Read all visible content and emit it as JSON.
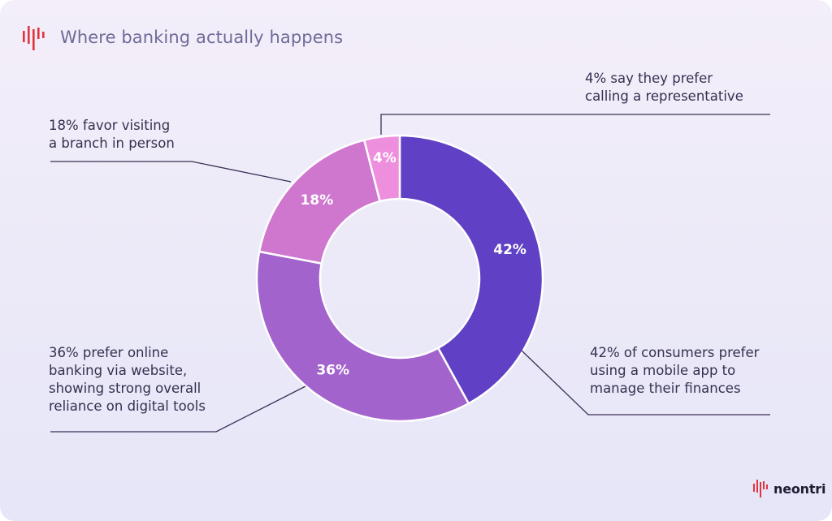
{
  "header": {
    "title": "Where banking actually happens"
  },
  "annotations": {
    "top_right": "4% say they prefer\ncalling a representative",
    "top_left": "18% favor visiting\na branch in person",
    "bottom_left": "36% prefer online\nbanking via website,\nshowing strong overall\nreliance on digital tools",
    "bottom_right": "42% of consumers prefer\nusing a mobile app to\nmanage their finances"
  },
  "chart_data": {
    "type": "pie",
    "donut": true,
    "slices": [
      {
        "label": "42%",
        "value": 42,
        "color": "#6040c4"
      },
      {
        "label": "36%",
        "value": 36,
        "color": "#a363cc"
      },
      {
        "label": "18%",
        "value": 18,
        "color": "#cf76cf"
      },
      {
        "label": "4%",
        "value": 4,
        "color": "#ee8fde"
      }
    ]
  },
  "colors": {
    "brand_red": "#e0343f",
    "leader_line": "#3b2f55",
    "title": "#6f6a98"
  },
  "logo": {
    "text": "neontri"
  }
}
